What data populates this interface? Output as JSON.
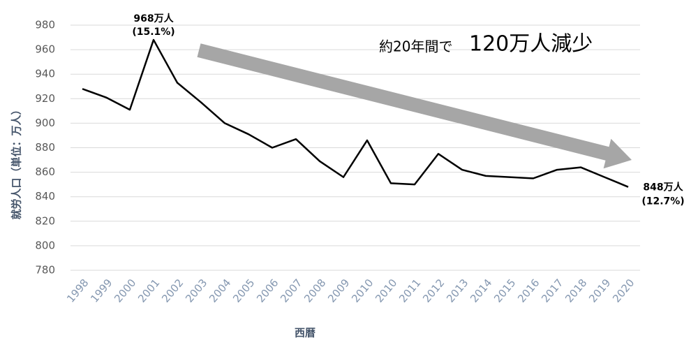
{
  "chart_data": {
    "type": "line",
    "y_label": "就労人口（単位：万人）",
    "x_label": "西暦",
    "headline": [
      "約20年間で",
      "120万人減少"
    ],
    "categories": [
      "1998",
      "1999",
      "2000",
      "2001",
      "2002",
      "2003",
      "2004",
      "2005",
      "2006",
      "2007",
      "2008",
      "2009",
      "2010",
      "2010",
      "2011",
      "2012",
      "2013",
      "2014",
      "2015",
      "2016",
      "2017",
      "2018",
      "2019",
      "2020"
    ],
    "values": [
      928,
      921,
      911,
      968,
      933,
      917,
      900,
      891,
      880,
      887,
      869,
      856,
      886,
      851,
      850,
      875,
      862,
      857,
      856,
      855,
      862,
      864,
      856,
      848
    ],
    "value_labels": [
      null,
      null,
      null,
      [
        "968万人",
        "(15.1%)"
      ],
      null,
      null,
      null,
      null,
      null,
      null,
      null,
      null,
      null,
      null,
      null,
      null,
      null,
      null,
      null,
      null,
      null,
      null,
      null,
      [
        "848万人",
        "(12.7%)"
      ]
    ],
    "color": "#000000",
    "ylim": [
      780,
      980
    ],
    "yticks": [
      780,
      800,
      820,
      840,
      860,
      880,
      900,
      920,
      940,
      960,
      980
    ],
    "grid": true
  }
}
